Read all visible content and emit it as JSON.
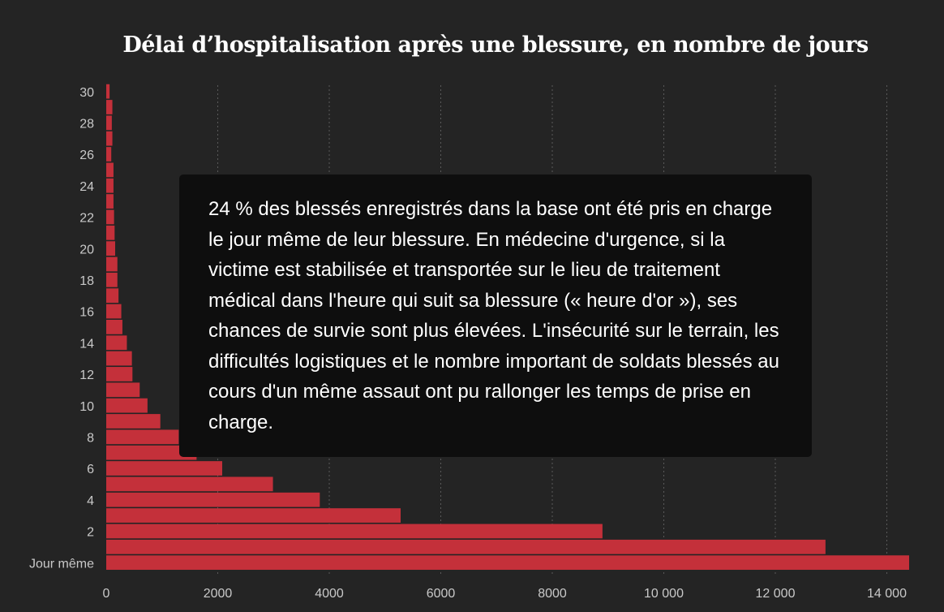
{
  "chart_data": {
    "type": "bar",
    "orientation": "horizontal",
    "title": "Délai d’hospitalisation après une blessure, en nombre de jours",
    "categories": [
      "Jour même",
      "1",
      "2",
      "3",
      "4",
      "5",
      "6",
      "7",
      "8",
      "9",
      "10",
      "11",
      "12",
      "13",
      "14",
      "15",
      "16",
      "17",
      "18",
      "19",
      "20",
      "21",
      "22",
      "23",
      "24",
      "25",
      "26",
      "27",
      "28",
      "29",
      "30"
    ],
    "values": [
      14400,
      12900,
      8900,
      5280,
      3830,
      2990,
      2080,
      1620,
      1300,
      970,
      740,
      600,
      470,
      460,
      370,
      290,
      270,
      220,
      200,
      200,
      160,
      150,
      140,
      130,
      130,
      130,
      90,
      110,
      100,
      110,
      60
    ],
    "y_tick_labels": [
      "Jour même",
      "2",
      "4",
      "6",
      "8",
      "10",
      "12",
      "14",
      "16",
      "18",
      "20",
      "22",
      "24",
      "26",
      "28",
      "30"
    ],
    "x_tick_values": [
      0,
      2000,
      4000,
      6000,
      8000,
      10000,
      12000,
      14000
    ],
    "x_tick_labels": [
      "0",
      "2000",
      "4000",
      "6000",
      "8000",
      "10 000",
      "12 000",
      "14 000"
    ],
    "xlim": [
      0,
      14400
    ],
    "grid": "vertical dotted",
    "bar_color": "#c4303a",
    "annotation": "24 % des blessés enregistrés dans la base ont été pris en charge le jour même de leur blessure. En médecine d'urgence, si la victime est stabilisée et transportée sur le lieu de traitement médical dans l'heure qui suit sa blessure (« heure d'or »), ses chances de survie sont plus élevées. L'insécurité sur le terrain, les difficultés logistiques et le nombre important de soldats blessés au cours d'un même assaut ont pu rallonger les temps de prise en charge."
  }
}
